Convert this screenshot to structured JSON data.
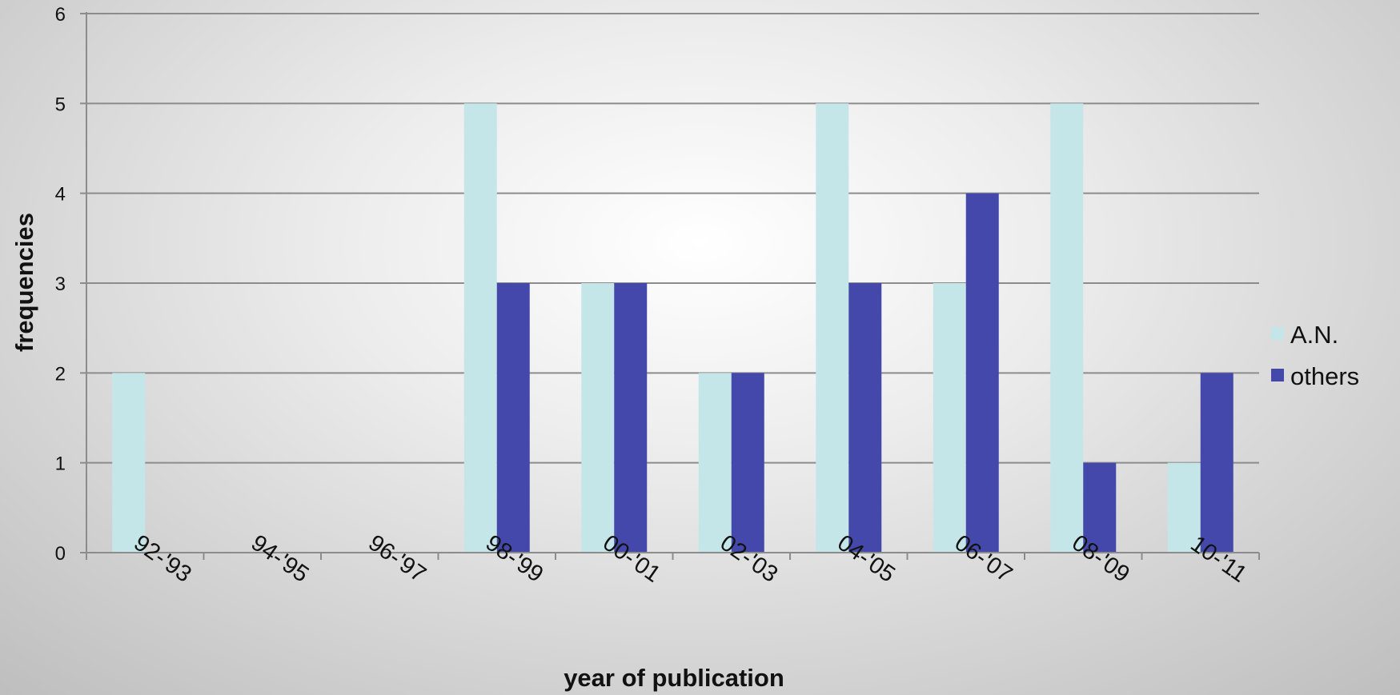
{
  "chart_data": {
    "type": "bar",
    "title": "",
    "xlabel": "year of publication",
    "ylabel": "frequencies",
    "categories": [
      "92-'93",
      "94-'95",
      "96-'97",
      "98-'99",
      "00-'01",
      "02-'03",
      "04-'05",
      "06-'07",
      "08-'09",
      "10-'11"
    ],
    "series": [
      {
        "name": "A.N.",
        "color": "#c5e6e8",
        "values": [
          2,
          0,
          0,
          5,
          3,
          2,
          5,
          3,
          5,
          1
        ]
      },
      {
        "name": "others",
        "color": "#4448aa",
        "values": [
          0,
          0,
          0,
          3,
          3,
          2,
          3,
          4,
          1,
          2
        ]
      }
    ],
    "ylim": [
      0,
      6
    ],
    "yticks": [
      "0",
      "1",
      "2",
      "3",
      "4",
      "5",
      "6"
    ],
    "grid": true,
    "legend": "right"
  }
}
